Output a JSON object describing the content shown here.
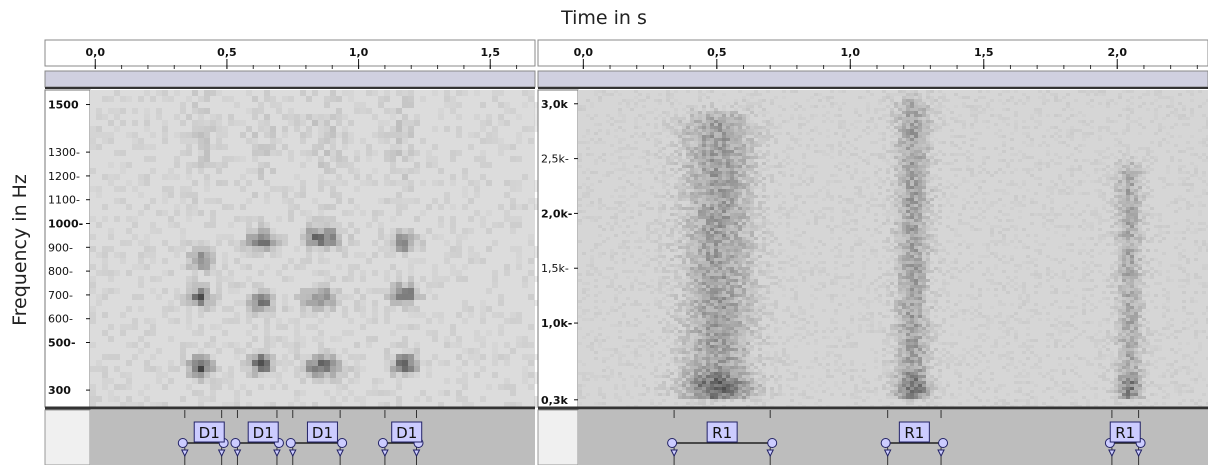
{
  "figure": {
    "title": "Time in s",
    "ylabel": "Frequency in Hz"
  },
  "chart_data": [
    {
      "type": "heatmap",
      "panel": "left",
      "xlabel": "Time in s",
      "ylabel": "Frequency in Hz",
      "xlim": [
        -0.02,
        1.67
      ],
      "ylim": [
        250,
        1540
      ],
      "x_ticks": [
        0.0,
        0.5,
        1.0,
        1.5
      ],
      "x_tick_labels": [
        "0,0",
        "0,5",
        "1,0",
        "1,5"
      ],
      "y_ticks": [
        300,
        500,
        600,
        700,
        800,
        900,
        1000,
        1100,
        1200,
        1300,
        1500
      ],
      "y_tick_labels": [
        "300",
        "500-",
        "600-",
        "700-",
        "800-",
        "900-",
        "1000-",
        "1100-",
        "1200-",
        "1300-",
        "1500"
      ],
      "y_bold_ticks": [
        300,
        500,
        1000,
        1500
      ],
      "colormap": "grayscale",
      "colors": {
        "background": "#dcdcdc",
        "energy": "#2a2a2a",
        "label_fill": "#ccccff",
        "label_border": "#222266"
      },
      "events": [
        {
          "t": 0.35,
          "dur": 0.1,
          "bands": [
            [
              400,
              1.0
            ],
            [
              690,
              0.85
            ],
            [
              850,
              0.8
            ]
          ]
        },
        {
          "t": 0.57,
          "dur": 0.12,
          "bands": [
            [
              410,
              0.9
            ],
            [
              670,
              0.75
            ],
            [
              930,
              0.85
            ]
          ]
        },
        {
          "t": 0.78,
          "dur": 0.16,
          "bands": [
            [
              400,
              0.9
            ],
            [
              690,
              0.7
            ],
            [
              940,
              0.85
            ]
          ]
        },
        {
          "t": 1.12,
          "dur": 0.11,
          "bands": [
            [
              410,
              0.95
            ],
            [
              700,
              0.9
            ],
            [
              920,
              0.7
            ]
          ]
        }
      ],
      "labels": [
        {
          "text": "D1",
          "start": 0.34,
          "end": 0.48
        },
        {
          "text": "D1",
          "start": 0.54,
          "end": 0.69
        },
        {
          "text": "D1",
          "start": 0.75,
          "end": 0.93
        },
        {
          "text": "D1",
          "start": 1.1,
          "end": 1.22
        }
      ]
    },
    {
      "type": "heatmap",
      "panel": "right",
      "xlabel": "Time in s",
      "ylabel": "Frequency in Hz",
      "xlim": [
        -0.02,
        2.34
      ],
      "ylim": [
        280,
        3080
      ],
      "x_ticks": [
        0.0,
        0.5,
        1.0,
        1.5,
        2.0
      ],
      "x_tick_labels": [
        "0,0",
        "0,5",
        "1,0",
        "1,5",
        "2,0"
      ],
      "y_ticks": [
        300,
        1000,
        1500,
        2000,
        2500,
        3000
      ],
      "y_tick_labels": [
        "0,3k",
        "1,0k-",
        "1,5k-",
        "2,0k-",
        "2,5k-",
        "3,0k"
      ],
      "y_bold_ticks": [
        300,
        1000,
        2000,
        3000
      ],
      "colormap": "grayscale",
      "colors": {
        "background": "#d6d6d6",
        "energy": "#2a2a2a",
        "label_fill": "#ccccff",
        "label_border": "#222266"
      },
      "events": [
        {
          "t": 0.33,
          "dur": 0.35,
          "low": 300,
          "high": 2800,
          "strength": 1.0
        },
        {
          "t": 1.15,
          "dur": 0.17,
          "low": 300,
          "high": 2950,
          "strength": 0.95
        },
        {
          "t": 1.98,
          "dur": 0.13,
          "low": 300,
          "high": 2350,
          "strength": 0.85
        }
      ],
      "labels": [
        {
          "text": "R1",
          "start": 0.34,
          "end": 0.7
        },
        {
          "text": "R1",
          "start": 1.14,
          "end": 1.34
        },
        {
          "text": "R1",
          "start": 1.98,
          "end": 2.08
        }
      ]
    }
  ]
}
